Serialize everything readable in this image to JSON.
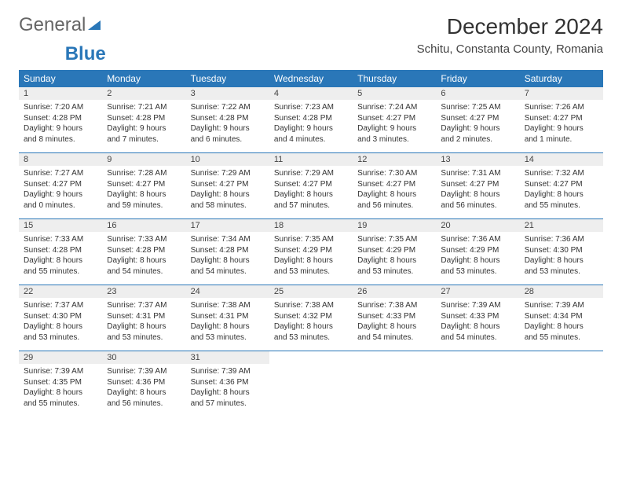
{
  "logo": {
    "part1": "General",
    "part2": "Blue"
  },
  "title": "December 2024",
  "location": "Schitu, Constanta County, Romania",
  "colors": {
    "header_bg": "#2a77b8",
    "header_fg": "#ffffff",
    "daynum_bg": "#eeeeee",
    "rule": "#2a77b8"
  },
  "dayHeaders": [
    "Sunday",
    "Monday",
    "Tuesday",
    "Wednesday",
    "Thursday",
    "Friday",
    "Saturday"
  ],
  "weeks": [
    [
      {
        "n": "1",
        "sr": "7:20 AM",
        "ss": "4:28 PM",
        "dl": "9 hours and 8 minutes."
      },
      {
        "n": "2",
        "sr": "7:21 AM",
        "ss": "4:28 PM",
        "dl": "9 hours and 7 minutes."
      },
      {
        "n": "3",
        "sr": "7:22 AM",
        "ss": "4:28 PM",
        "dl": "9 hours and 6 minutes."
      },
      {
        "n": "4",
        "sr": "7:23 AM",
        "ss": "4:28 PM",
        "dl": "9 hours and 4 minutes."
      },
      {
        "n": "5",
        "sr": "7:24 AM",
        "ss": "4:27 PM",
        "dl": "9 hours and 3 minutes."
      },
      {
        "n": "6",
        "sr": "7:25 AM",
        "ss": "4:27 PM",
        "dl": "9 hours and 2 minutes."
      },
      {
        "n": "7",
        "sr": "7:26 AM",
        "ss": "4:27 PM",
        "dl": "9 hours and 1 minute."
      }
    ],
    [
      {
        "n": "8",
        "sr": "7:27 AM",
        "ss": "4:27 PM",
        "dl": "9 hours and 0 minutes."
      },
      {
        "n": "9",
        "sr": "7:28 AM",
        "ss": "4:27 PM",
        "dl": "8 hours and 59 minutes."
      },
      {
        "n": "10",
        "sr": "7:29 AM",
        "ss": "4:27 PM",
        "dl": "8 hours and 58 minutes."
      },
      {
        "n": "11",
        "sr": "7:29 AM",
        "ss": "4:27 PM",
        "dl": "8 hours and 57 minutes."
      },
      {
        "n": "12",
        "sr": "7:30 AM",
        "ss": "4:27 PM",
        "dl": "8 hours and 56 minutes."
      },
      {
        "n": "13",
        "sr": "7:31 AM",
        "ss": "4:27 PM",
        "dl": "8 hours and 56 minutes."
      },
      {
        "n": "14",
        "sr": "7:32 AM",
        "ss": "4:27 PM",
        "dl": "8 hours and 55 minutes."
      }
    ],
    [
      {
        "n": "15",
        "sr": "7:33 AM",
        "ss": "4:28 PM",
        "dl": "8 hours and 55 minutes."
      },
      {
        "n": "16",
        "sr": "7:33 AM",
        "ss": "4:28 PM",
        "dl": "8 hours and 54 minutes."
      },
      {
        "n": "17",
        "sr": "7:34 AM",
        "ss": "4:28 PM",
        "dl": "8 hours and 54 minutes."
      },
      {
        "n": "18",
        "sr": "7:35 AM",
        "ss": "4:29 PM",
        "dl": "8 hours and 53 minutes."
      },
      {
        "n": "19",
        "sr": "7:35 AM",
        "ss": "4:29 PM",
        "dl": "8 hours and 53 minutes."
      },
      {
        "n": "20",
        "sr": "7:36 AM",
        "ss": "4:29 PM",
        "dl": "8 hours and 53 minutes."
      },
      {
        "n": "21",
        "sr": "7:36 AM",
        "ss": "4:30 PM",
        "dl": "8 hours and 53 minutes."
      }
    ],
    [
      {
        "n": "22",
        "sr": "7:37 AM",
        "ss": "4:30 PM",
        "dl": "8 hours and 53 minutes."
      },
      {
        "n": "23",
        "sr": "7:37 AM",
        "ss": "4:31 PM",
        "dl": "8 hours and 53 minutes."
      },
      {
        "n": "24",
        "sr": "7:38 AM",
        "ss": "4:31 PM",
        "dl": "8 hours and 53 minutes."
      },
      {
        "n": "25",
        "sr": "7:38 AM",
        "ss": "4:32 PM",
        "dl": "8 hours and 53 minutes."
      },
      {
        "n": "26",
        "sr": "7:38 AM",
        "ss": "4:33 PM",
        "dl": "8 hours and 54 minutes."
      },
      {
        "n": "27",
        "sr": "7:39 AM",
        "ss": "4:33 PM",
        "dl": "8 hours and 54 minutes."
      },
      {
        "n": "28",
        "sr": "7:39 AM",
        "ss": "4:34 PM",
        "dl": "8 hours and 55 minutes."
      }
    ],
    [
      {
        "n": "29",
        "sr": "7:39 AM",
        "ss": "4:35 PM",
        "dl": "8 hours and 55 minutes."
      },
      {
        "n": "30",
        "sr": "7:39 AM",
        "ss": "4:36 PM",
        "dl": "8 hours and 56 minutes."
      },
      {
        "n": "31",
        "sr": "7:39 AM",
        "ss": "4:36 PM",
        "dl": "8 hours and 57 minutes."
      },
      null,
      null,
      null,
      null
    ]
  ]
}
